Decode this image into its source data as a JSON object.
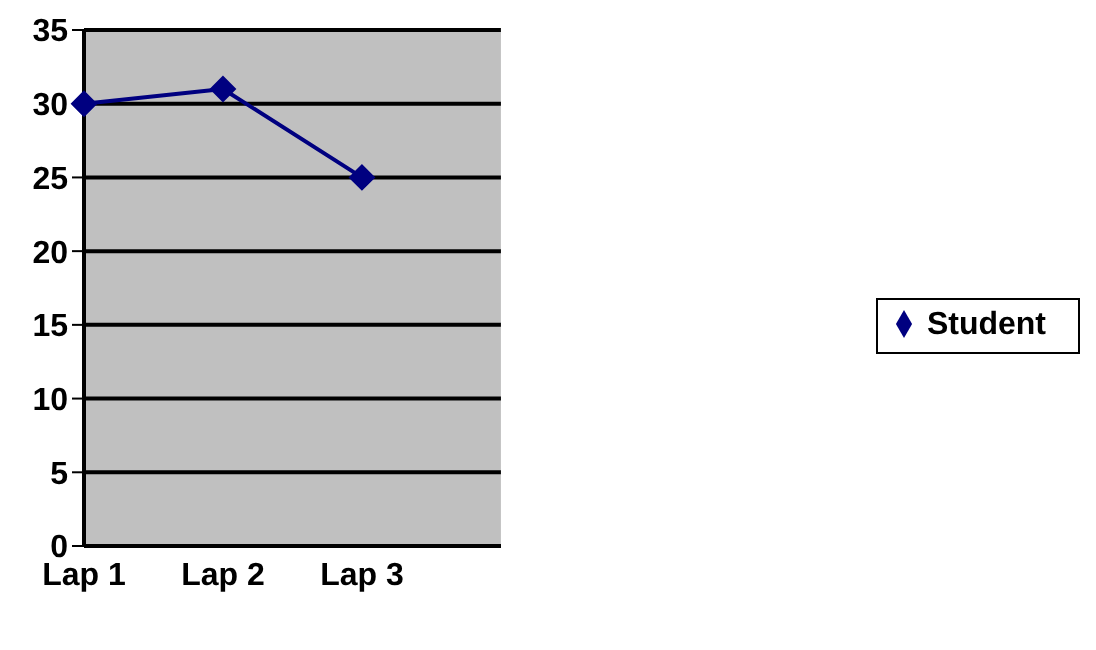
{
  "chart_data": {
    "type": "line",
    "categories": [
      "Lap 1",
      "Lap 2",
      "Lap 3",
      null
    ],
    "series": [
      {
        "name": "Student",
        "color": "#000080",
        "values": [
          30,
          31,
          25,
          null
        ]
      }
    ],
    "ylim": [
      0,
      35
    ],
    "yticks": [
      0,
      5,
      10,
      15,
      20,
      25,
      30,
      35
    ],
    "grid": "y",
    "legend": "right",
    "marker": "diamond",
    "line_style": "solid"
  }
}
